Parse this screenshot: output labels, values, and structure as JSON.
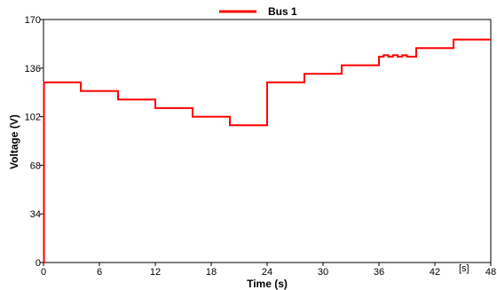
{
  "chart_data": {
    "type": "line",
    "title": "",
    "xlabel": "Time (s)",
    "ylabel": "Voltage (V)",
    "x_unit_label": "[s]",
    "xlim": [
      0,
      48
    ],
    "ylim": [
      0,
      170
    ],
    "xticks": [
      0,
      6,
      12,
      18,
      24,
      30,
      36,
      42,
      48
    ],
    "yticks": [
      0,
      34,
      68,
      102,
      136,
      170
    ],
    "grid": false,
    "legend_position": "top-center",
    "series": [
      {
        "name": "Bus 1",
        "color": "#ff0000",
        "step": true,
        "x": [
          0,
          0.05,
          4,
          8,
          12,
          16,
          20,
          24,
          28,
          32,
          36,
          36.5,
          37,
          37.5,
          38,
          38.5,
          39,
          40,
          44,
          48
        ],
        "y": [
          0,
          126,
          120,
          114,
          108,
          102,
          96,
          126,
          132,
          138,
          144,
          145,
          144,
          145,
          144,
          145,
          144,
          150,
          156,
          156
        ]
      }
    ]
  }
}
